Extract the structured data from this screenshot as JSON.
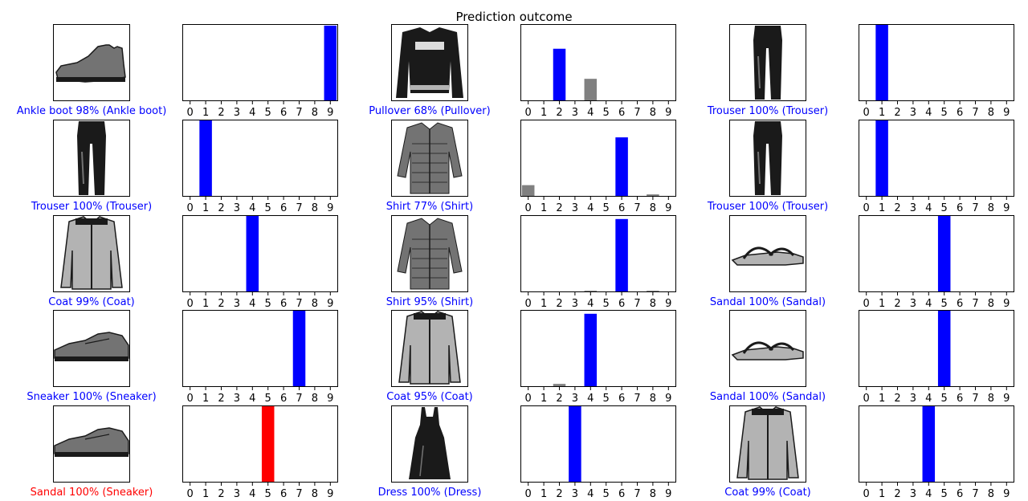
{
  "title": "Prediction outcome",
  "class_ticks": [
    "0",
    "1",
    "2",
    "3",
    "4",
    "5",
    "6",
    "7",
    "8",
    "9"
  ],
  "colors": {
    "correct": "#0000ff",
    "wrong": "#ff0000",
    "other_bar": "#808080",
    "frame": "#000000",
    "tick_text": "#000000"
  },
  "chart_data": [
    {
      "type": "bar",
      "panel": "row1-col1",
      "image_icon": "ankle-boot-icon",
      "caption": "Ankle boot 98% (Ankle boot)",
      "correct": true,
      "predicted": 9,
      "true_label": 9,
      "categories": [
        "0",
        "1",
        "2",
        "3",
        "4",
        "5",
        "6",
        "7",
        "8",
        "9"
      ],
      "values": [
        0,
        0,
        0,
        0,
        0,
        0,
        0,
        0.01,
        0.01,
        0.98
      ],
      "ylim": [
        0,
        1
      ]
    },
    {
      "type": "bar",
      "panel": "row1-col2",
      "image_icon": "pullover-icon",
      "caption": "Pullover 68% (Pullover)",
      "correct": true,
      "predicted": 2,
      "true_label": 2,
      "categories": [
        "0",
        "1",
        "2",
        "3",
        "4",
        "5",
        "6",
        "7",
        "8",
        "9"
      ],
      "values": [
        0,
        0.01,
        0.68,
        0.01,
        0.29,
        0,
        0.01,
        0,
        0,
        0
      ],
      "ylim": [
        0,
        1
      ]
    },
    {
      "type": "bar",
      "panel": "row1-col3",
      "image_icon": "trouser-icon",
      "caption": "Trouser 100% (Trouser)",
      "correct": true,
      "predicted": 1,
      "true_label": 1,
      "categories": [
        "0",
        "1",
        "2",
        "3",
        "4",
        "5",
        "6",
        "7",
        "8",
        "9"
      ],
      "values": [
        0,
        1.0,
        0,
        0,
        0,
        0,
        0,
        0,
        0,
        0
      ],
      "ylim": [
        0,
        1
      ]
    },
    {
      "type": "bar",
      "panel": "row2-col1",
      "image_icon": "trouser-icon",
      "caption": "Trouser 100% (Trouser)",
      "correct": true,
      "predicted": 1,
      "true_label": 1,
      "categories": [
        "0",
        "1",
        "2",
        "3",
        "4",
        "5",
        "6",
        "7",
        "8",
        "9"
      ],
      "values": [
        0,
        1.0,
        0,
        0,
        0,
        0,
        0,
        0,
        0,
        0
      ],
      "ylim": [
        0,
        1
      ]
    },
    {
      "type": "bar",
      "panel": "row2-col2",
      "image_icon": "shirt-icon",
      "caption": "Shirt 77% (Shirt)",
      "correct": true,
      "predicted": 6,
      "true_label": 6,
      "categories": [
        "0",
        "1",
        "2",
        "3",
        "4",
        "5",
        "6",
        "7",
        "8",
        "9"
      ],
      "values": [
        0.15,
        0,
        0.01,
        0.01,
        0,
        0,
        0.77,
        0,
        0.03,
        0
      ],
      "ylim": [
        0,
        1
      ]
    },
    {
      "type": "bar",
      "panel": "row2-col3",
      "image_icon": "trouser-icon",
      "caption": "Trouser 100% (Trouser)",
      "correct": true,
      "predicted": 1,
      "true_label": 1,
      "categories": [
        "0",
        "1",
        "2",
        "3",
        "4",
        "5",
        "6",
        "7",
        "8",
        "9"
      ],
      "values": [
        0,
        1.0,
        0,
        0,
        0,
        0,
        0,
        0,
        0,
        0
      ],
      "ylim": [
        0,
        1
      ]
    },
    {
      "type": "bar",
      "panel": "row3-col1",
      "image_icon": "coat-icon",
      "caption": "Coat 99% (Coat)",
      "correct": true,
      "predicted": 4,
      "true_label": 4,
      "categories": [
        "0",
        "1",
        "2",
        "3",
        "4",
        "5",
        "6",
        "7",
        "8",
        "9"
      ],
      "values": [
        0,
        0,
        0,
        0,
        0.99,
        0,
        0,
        0,
        0,
        0
      ],
      "ylim": [
        0,
        1
      ]
    },
    {
      "type": "bar",
      "panel": "row3-col2",
      "image_icon": "shirt-icon",
      "caption": "Shirt 95% (Shirt)",
      "correct": true,
      "predicted": 6,
      "true_label": 6,
      "categories": [
        "0",
        "1",
        "2",
        "3",
        "4",
        "5",
        "6",
        "7",
        "8",
        "9"
      ],
      "values": [
        0,
        0,
        0,
        0,
        0.02,
        0,
        0.95,
        0,
        0.02,
        0
      ],
      "ylim": [
        0,
        1
      ]
    },
    {
      "type": "bar",
      "panel": "row3-col3",
      "image_icon": "sandal-icon",
      "caption": "Sandal 100% (Sandal)",
      "correct": true,
      "predicted": 5,
      "true_label": 5,
      "categories": [
        "0",
        "1",
        "2",
        "3",
        "4",
        "5",
        "6",
        "7",
        "8",
        "9"
      ],
      "values": [
        0,
        0,
        0,
        0,
        0,
        1.0,
        0,
        0,
        0,
        0
      ],
      "ylim": [
        0,
        1
      ]
    },
    {
      "type": "bar",
      "panel": "row4-col1",
      "image_icon": "sneaker-icon",
      "caption": "Sneaker 100% (Sneaker)",
      "correct": true,
      "predicted": 7,
      "true_label": 7,
      "categories": [
        "0",
        "1",
        "2",
        "3",
        "4",
        "5",
        "6",
        "7",
        "8",
        "9"
      ],
      "values": [
        0,
        0,
        0,
        0,
        0,
        0,
        0,
        1.0,
        0,
        0
      ],
      "ylim": [
        0,
        1
      ]
    },
    {
      "type": "bar",
      "panel": "row4-col2",
      "image_icon": "coat-icon",
      "caption": "Coat 95% (Coat)",
      "correct": true,
      "predicted": 4,
      "true_label": 4,
      "categories": [
        "0",
        "1",
        "2",
        "3",
        "4",
        "5",
        "6",
        "7",
        "8",
        "9"
      ],
      "values": [
        0,
        0,
        0.04,
        0,
        0.95,
        0,
        0,
        0,
        0,
        0
      ],
      "ylim": [
        0,
        1
      ]
    },
    {
      "type": "bar",
      "panel": "row4-col3",
      "image_icon": "sandal-icon",
      "caption": "Sandal 100% (Sandal)",
      "correct": true,
      "predicted": 5,
      "true_label": 5,
      "categories": [
        "0",
        "1",
        "2",
        "3",
        "4",
        "5",
        "6",
        "7",
        "8",
        "9"
      ],
      "values": [
        0,
        0,
        0,
        0,
        0,
        1.0,
        0,
        0,
        0,
        0
      ],
      "ylim": [
        0,
        1
      ]
    },
    {
      "type": "bar",
      "panel": "row5-col1",
      "image_icon": "sneaker-icon",
      "caption": "Sandal 100% (Sneaker)",
      "correct": false,
      "predicted": 5,
      "true_label": 7,
      "categories": [
        "0",
        "1",
        "2",
        "3",
        "4",
        "5",
        "6",
        "7",
        "8",
        "9"
      ],
      "values": [
        0,
        0,
        0,
        0,
        0,
        1.0,
        0,
        0,
        0,
        0
      ],
      "ylim": [
        0,
        1
      ]
    },
    {
      "type": "bar",
      "panel": "row5-col2",
      "image_icon": "dress-icon",
      "caption": "Dress 100% (Dress)",
      "correct": true,
      "predicted": 3,
      "true_label": 3,
      "categories": [
        "0",
        "1",
        "2",
        "3",
        "4",
        "5",
        "6",
        "7",
        "8",
        "9"
      ],
      "values": [
        0,
        0,
        0,
        1.0,
        0,
        0,
        0,
        0,
        0,
        0
      ],
      "ylim": [
        0,
        1
      ]
    },
    {
      "type": "bar",
      "panel": "row5-col3",
      "image_icon": "coat-icon",
      "caption": "Coat 99% (Coat)",
      "correct": true,
      "predicted": 4,
      "true_label": 4,
      "categories": [
        "0",
        "1",
        "2",
        "3",
        "4",
        "5",
        "6",
        "7",
        "8",
        "9"
      ],
      "values": [
        0,
        0,
        0,
        0,
        0.99,
        0,
        0.01,
        0,
        0,
        0
      ],
      "ylim": [
        0,
        1
      ]
    }
  ]
}
